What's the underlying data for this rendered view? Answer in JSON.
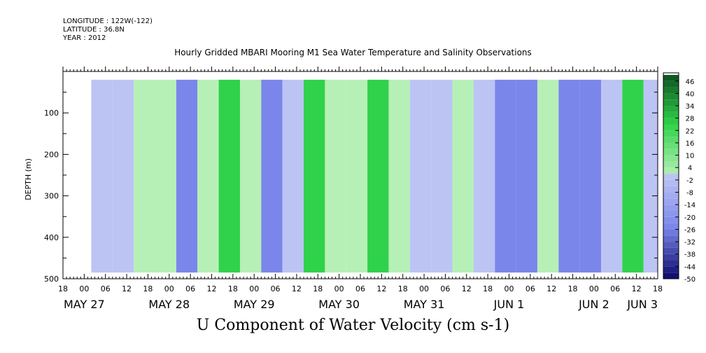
{
  "header": {
    "longitude": "LONGITUDE : 122W(-122)",
    "latitude": "LATITUDE : 36.8N",
    "year": "YEAR : 2012"
  },
  "colors": {
    "strong_positive": "#0b4d1e",
    "positive": "#2fd24a",
    "weak_positive": "#b6f0b6",
    "weak_negative": "#bcc4f4",
    "negative": "#7b86ea",
    "strong_negative": "#0a0a6a"
  },
  "chart_data": {
    "type": "heatmap",
    "title": "Hourly Gridded MBARI Mooring M1 Sea Water Temperature and Salinity Observations",
    "xlabel": "U Component of Water Velocity (cm s-1)",
    "ylabel": "DEPTH (m)",
    "ylim": [
      500,
      0
    ],
    "y_ticks": [
      100,
      200,
      300,
      400,
      500
    ],
    "x_hour_ticks": [
      "18",
      "00",
      "06",
      "12",
      "18",
      "00",
      "06",
      "12",
      "18",
      "00",
      "06",
      "12",
      "18",
      "00",
      "06",
      "12",
      "18",
      "00",
      "06",
      "12",
      "18",
      "00",
      "06",
      "12",
      "18",
      "00",
      "06",
      "12",
      "18"
    ],
    "x_day_labels": [
      "MAY 27",
      "MAY 28",
      "MAY 29",
      "MAY 30",
      "MAY 31",
      "JUN  1",
      "JUN  2",
      "JUN  3"
    ],
    "colorbar_labels": [
      "46",
      "40",
      "34",
      "28",
      "22",
      "16",
      "10",
      "4",
      "-2",
      "-8",
      "-14",
      "-20",
      "-26",
      "-32",
      "-38",
      "-44",
      "-50"
    ],
    "colorbar_range": [
      -50,
      50
    ],
    "colorbar_step": 3,
    "data_extent": {
      "time_start": "MAY 28 02",
      "time_end": "JUN 3 18",
      "depth_min": 20,
      "depth_max": 485
    },
    "bands": [
      {
        "time": "MAY 28 02",
        "u": -8
      },
      {
        "time": "MAY 28 08",
        "u": -4
      },
      {
        "time": "MAY 28 14",
        "u": 4
      },
      {
        "time": "MAY 28 20",
        "u": 6
      },
      {
        "time": "MAY 29 02",
        "u": -10
      },
      {
        "time": "MAY 29 08",
        "u": 2
      },
      {
        "time": "MAY 29 14",
        "u": 10
      },
      {
        "time": "MAY 29 20",
        "u": 6
      },
      {
        "time": "MAY 30 02",
        "u": -10
      },
      {
        "time": "MAY 30 08",
        "u": -6
      },
      {
        "time": "MAY 30 14",
        "u": 10
      },
      {
        "time": "MAY 30 20",
        "u": 8
      },
      {
        "time": "MAY 31 02",
        "u": 4
      },
      {
        "time": "MAY 31 08",
        "u": 10
      },
      {
        "time": "MAY 31 14",
        "u": 6
      },
      {
        "time": "MAY 31 20",
        "u": -8
      },
      {
        "time": "JUN 1 02",
        "u": -8
      },
      {
        "time": "JUN 1 08",
        "u": 6
      },
      {
        "time": "JUN 1 14",
        "u": -8
      },
      {
        "time": "JUN 1 20",
        "u": -12
      },
      {
        "time": "JUN 2 02",
        "u": -14
      },
      {
        "time": "JUN 2 08",
        "u": 4
      },
      {
        "time": "JUN 2 14",
        "u": -10
      },
      {
        "time": "JUN 2 20",
        "u": -16
      },
      {
        "time": "JUN 3 02",
        "u": -6
      },
      {
        "time": "JUN 3 08",
        "u": 10
      },
      {
        "time": "JUN 3 14",
        "u": -4
      }
    ]
  }
}
